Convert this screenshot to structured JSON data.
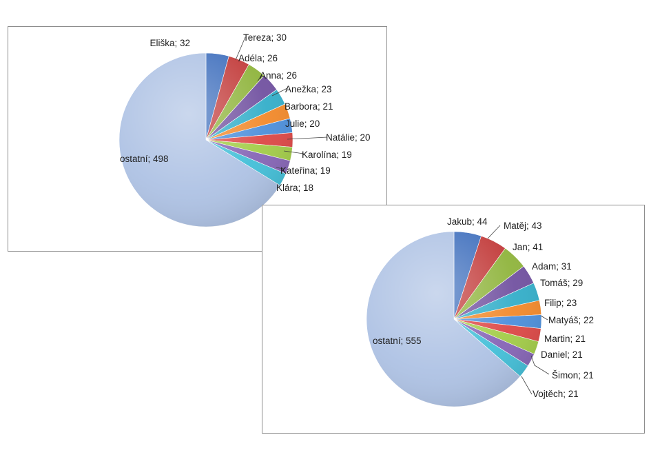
{
  "chart_data": [
    {
      "type": "pie",
      "title": "",
      "labels": [
        "Eliška",
        "Tereza",
        "Adéla",
        "Anna",
        "Anežka",
        "Barbora",
        "Julie",
        "Natálie",
        "Karolína",
        "Kateřina",
        "Klára",
        "ostatní"
      ],
      "values": [
        32,
        30,
        26,
        26,
        23,
        21,
        20,
        20,
        19,
        19,
        18,
        498
      ],
      "data_labels": [
        "Eliška; 32",
        "Tereza; 30",
        "Adéla; 26",
        "Anna; 26",
        "Anežka; 23",
        "Barbora; 21",
        "Julie; 20",
        "Natálie; 20",
        "Karolína; 19",
        "Kateřina; 19",
        "Klára; 18",
        "ostatní; 498"
      ],
      "start_angle": "12 o'clock, clockwise",
      "legend": "none"
    },
    {
      "type": "pie",
      "title": "",
      "labels": [
        "Jakub",
        "Matěj",
        "Jan",
        "Adam",
        "Tomáš",
        "Filip",
        "Matyáš",
        "Martin",
        "Daniel",
        "Šimon",
        "Vojtěch",
        "ostatní"
      ],
      "values": [
        44,
        43,
        41,
        31,
        29,
        23,
        22,
        21,
        21,
        21,
        21,
        555
      ],
      "data_labels": [
        "Jakub; 44",
        "Matěj; 43",
        "Jan; 41",
        "Adam; 31",
        "Tomáš; 29",
        "Filip; 23",
        "Matyáš; 22",
        "Martin; 21",
        "Daniel; 21",
        "Šimon; 21",
        "Vojtěch; 21",
        "ostatní; 555"
      ],
      "start_angle": "12 o'clock, clockwise",
      "legend": "none"
    }
  ],
  "colors": {
    "slices": [
      "#3f6fbd",
      "#c23b3a",
      "#8fb43c",
      "#7151a0",
      "#33aec9",
      "#f2892a",
      "#4c8fdb",
      "#dd4846",
      "#a3cd48",
      "#8665b6",
      "#43bfd8"
    ],
    "others": "#aec2e4"
  }
}
